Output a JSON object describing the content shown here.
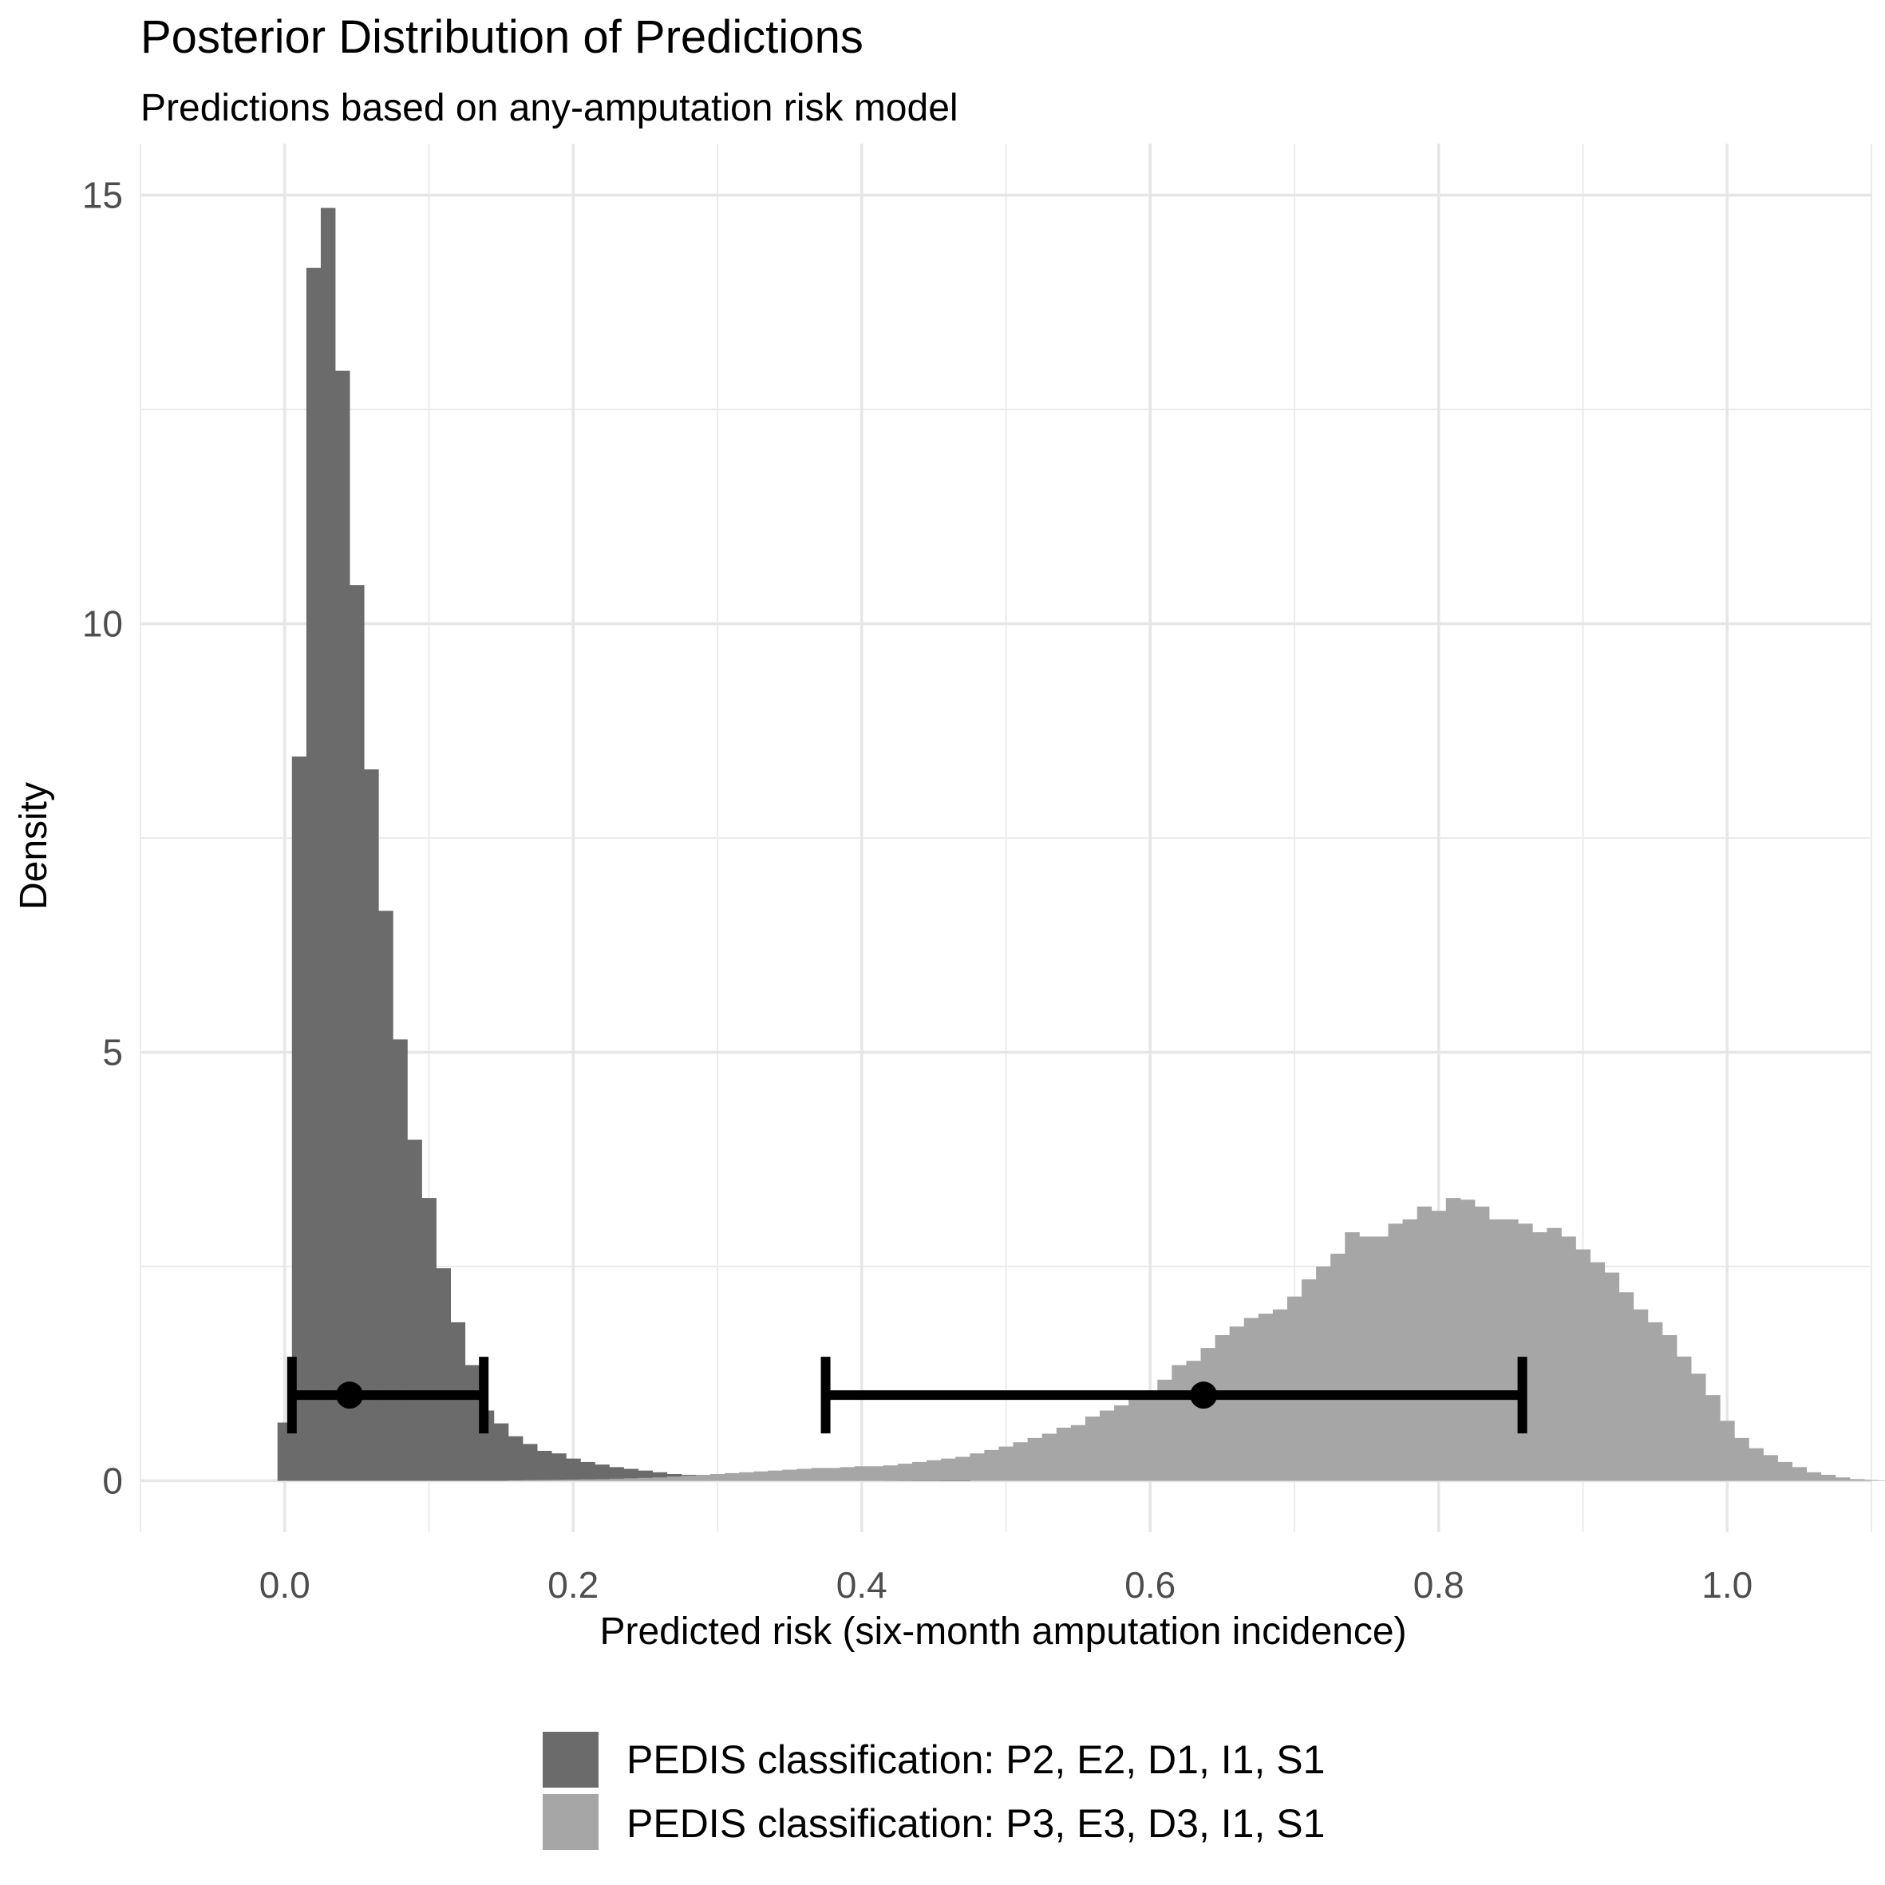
{
  "chart_data": {
    "type": "histogram",
    "title": "Posterior Distribution of Predictions",
    "subtitle": "Predictions based on any-amputation risk model",
    "xlabel": "Predicted risk (six-month amputation incidence)",
    "ylabel": "Density",
    "xlim": [
      -0.1,
      1.1
    ],
    "ylim": [
      -0.6,
      15.6
    ],
    "x_ticks": [
      0.0,
      0.2,
      0.4,
      0.6,
      0.8,
      1.0
    ],
    "x_tick_labels": [
      "0.0",
      "0.2",
      "0.4",
      "0.6",
      "0.8",
      "1.0"
    ],
    "y_ticks": [
      0,
      5,
      10,
      15
    ],
    "y_tick_labels": [
      "0",
      "5",
      "10",
      "15"
    ],
    "grid": true,
    "legend_position": "bottom",
    "bin_width": 0.01,
    "bin_start": -0.005,
    "series": [
      {
        "name": "PEDIS classification: P2, E2, D1, I1, S1",
        "color": "#6b6b6b",
        "density": [
          0.68,
          8.45,
          14.15,
          14.85,
          12.95,
          10.45,
          8.3,
          6.65,
          5.15,
          3.98,
          3.3,
          2.48,
          1.85,
          1.35,
          0.82,
          0.67,
          0.52,
          0.43,
          0.35,
          0.32,
          0.26,
          0.22,
          0.19,
          0.16,
          0.14,
          0.12,
          0.1,
          0.08,
          0.07,
          0.06,
          0.05,
          0.04,
          0.035,
          0.03,
          0.025,
          0.02,
          0.015,
          0.012,
          0.01,
          0.008,
          0.006,
          0.005,
          0.004,
          0.003,
          0.002,
          0.002,
          0.001,
          0.001
        ],
        "interval": {
          "point": 0.045,
          "lower": 0.005,
          "upper": 0.138,
          "y": 1
        }
      },
      {
        "name": "PEDIS classification: P3, E3, D3, I1, S1",
        "color": "#a6a6a6",
        "density": [
          0,
          0.005,
          0.008,
          0.01,
          0.012,
          0.015,
          0.018,
          0.02,
          0.025,
          0.03,
          0.035,
          0.04,
          0.05,
          0.06,
          0.07,
          0.08,
          0.09,
          0.1,
          0.11,
          0.12,
          0.13,
          0.14,
          0.15,
          0.15,
          0.16,
          0.17,
          0.17,
          0.18,
          0.2,
          0.22,
          0.24,
          0.26,
          0.28,
          0.32,
          0.36,
          0.4,
          0.45,
          0.5,
          0.55,
          0.62,
          0.65,
          0.75,
          0.82,
          0.88,
          0.95,
          1.05,
          1.18,
          1.35,
          1.4,
          1.55,
          1.7,
          1.8,
          1.9,
          1.95,
          2.0,
          2.15,
          2.35,
          2.5,
          2.65,
          2.9,
          2.85,
          2.85,
          3.0,
          3.05,
          3.2,
          3.15,
          3.3,
          3.28,
          3.2,
          3.05,
          3.05,
          3.0,
          2.9,
          2.95,
          2.85,
          2.7,
          2.55,
          2.43,
          2.2,
          2.0,
          1.85,
          1.7,
          1.45,
          1.25,
          1.0,
          0.7,
          0.5,
          0.38,
          0.3,
          0.22,
          0.16,
          0.1,
          0.07,
          0.04,
          0.02,
          0.01,
          0.005
        ],
        "bin_start": 0.145,
        "interval": {
          "point": 0.637,
          "lower": 0.375,
          "upper": 0.858,
          "y": 1
        }
      }
    ]
  }
}
